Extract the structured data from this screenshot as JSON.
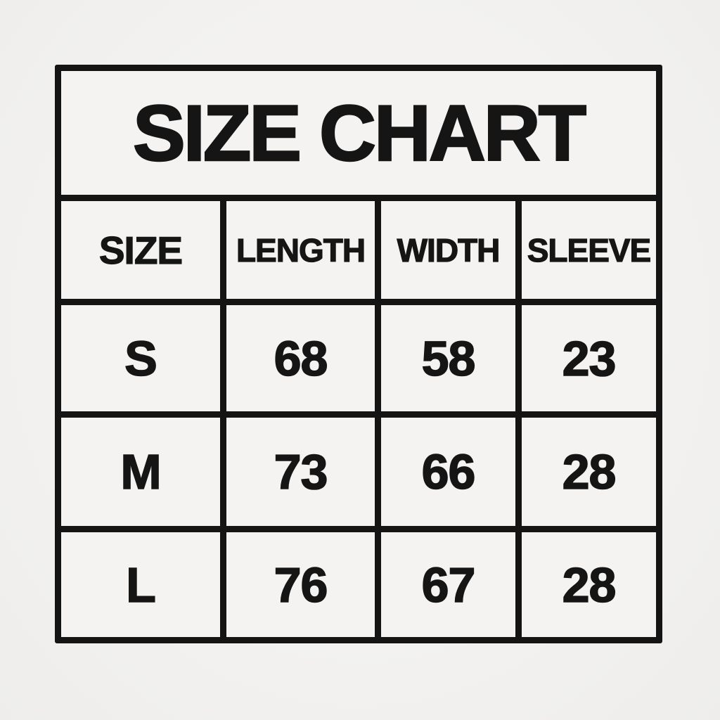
{
  "page": {
    "background_color": "#f3f2f0",
    "line_color": "#141414",
    "cell_color": "#f4f3f1",
    "text_color": "#151515"
  },
  "chart_data": {
    "type": "table",
    "title": "SIZE CHART",
    "columns": [
      "SIZE",
      "LENGTH",
      "WIDTH",
      "SLEEVE"
    ],
    "rows": [
      [
        "S",
        "68",
        "58",
        "23"
      ],
      [
        "M",
        "73",
        "66",
        "28"
      ],
      [
        "L",
        "76",
        "67",
        "28"
      ]
    ]
  }
}
